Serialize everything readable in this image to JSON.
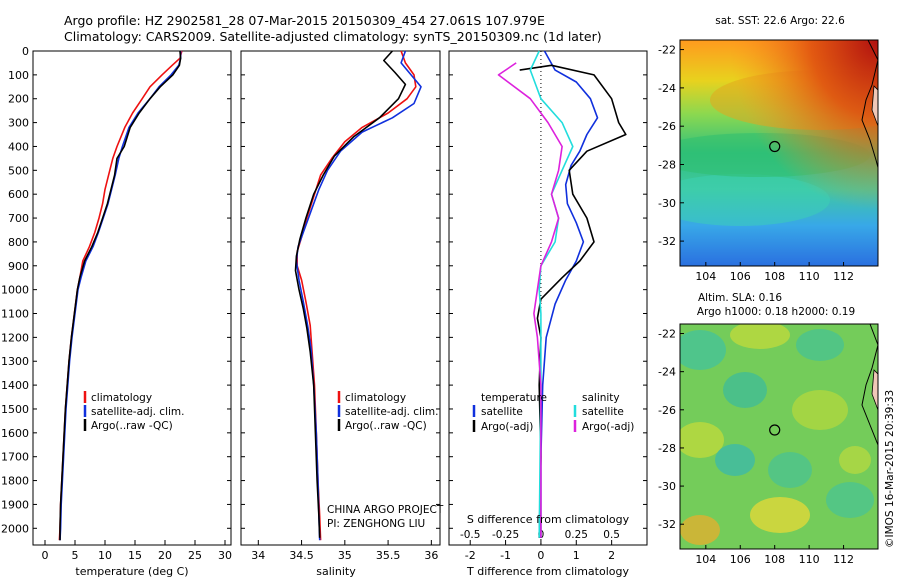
{
  "header": {
    "line1": "Argo profile: HZ 2902581_28 07-Mar-2015 20150309_454 27.061S 107.979E",
    "line2": "Climatology: CARS2009. Satellite-adjusted climatology: synTS_20150309.nc (1d later)"
  },
  "colors": {
    "climatology": "#ee1111",
    "satellite": "#1030dd",
    "argo": "#000000",
    "sal_satellite": "#22dddd",
    "sal_argo": "#dd22dd"
  },
  "depth_axis": {
    "ticks": [
      0,
      100,
      200,
      300,
      400,
      500,
      600,
      700,
      800,
      900,
      1000,
      1100,
      1200,
      1300,
      1400,
      1500,
      1600,
      1700,
      1800,
      1900,
      2000
    ],
    "range": [
      0,
      2070
    ]
  },
  "legend": {
    "climatology": "climatology",
    "satellite": "satellite-adj. clim.",
    "argo": "Argo(..raw -QC)"
  },
  "credit": {
    "project": "CHINA ARGO PROJECT",
    "pi": "PI: ZENGHONG LIU"
  },
  "diff_legend": {
    "temperature": "temperature",
    "salinity": "salinity",
    "t_satellite": "satellite",
    "t_argo": "Argo(-adj)",
    "s_satellite": "satellite",
    "s_argo": "Argo(-adj)"
  },
  "sst_map": {
    "title": "sat. SST: 22.6  Argo: 22.6"
  },
  "sla_map": {
    "title1": "Altim. SLA: 0.16",
    "title2": "Argo h1000: 0.18 h2000: 0.19"
  },
  "map_ticks": {
    "lon": [
      "104",
      "106",
      "108",
      "110",
      "112"
    ],
    "lat": [
      "-22",
      "-24",
      "-26",
      "-28",
      "-30",
      "-32"
    ]
  },
  "watermark": "©IMOS 16-Mar-2015 20:39:33",
  "chart_data": [
    {
      "type": "line",
      "xlabel": "temperature (deg C)",
      "ylabel": "",
      "xlim": [
        -2,
        31
      ],
      "ylim": [
        2070,
        0
      ],
      "xticks": [
        0,
        5,
        10,
        15,
        20,
        25,
        30
      ],
      "series": [
        {
          "name": "climatology",
          "color": "#ee1111",
          "points": [
            [
              22.8,
              0
            ],
            [
              22.5,
              30
            ],
            [
              21.2,
              60
            ],
            [
              19.5,
              100
            ],
            [
              17.5,
              150
            ],
            [
              16.2,
              200
            ],
            [
              14.6,
              260
            ],
            [
              13.3,
              320
            ],
            [
              12.0,
              400
            ],
            [
              11.3,
              450
            ],
            [
              10.6,
              520
            ],
            [
              10.0,
              580
            ],
            [
              9.6,
              640
            ],
            [
              9.0,
              700
            ],
            [
              8.3,
              760
            ],
            [
              7.4,
              820
            ],
            [
              6.3,
              880
            ],
            [
              5.8,
              950
            ],
            [
              5.4,
              1000
            ],
            [
              4.9,
              1100
            ],
            [
              4.4,
              1200
            ],
            [
              4.0,
              1300
            ],
            [
              3.7,
              1400
            ],
            [
              3.4,
              1500
            ],
            [
              3.2,
              1600
            ],
            [
              3.0,
              1700
            ],
            [
              2.8,
              1800
            ],
            [
              2.6,
              1900
            ],
            [
              2.5,
              2000
            ],
            [
              2.4,
              2050
            ]
          ]
        },
        {
          "name": "satellite-adj. clim.",
          "color": "#1030dd",
          "points": [
            [
              22.6,
              0
            ],
            [
              22.6,
              30
            ],
            [
              22.3,
              60
            ],
            [
              21.0,
              100
            ],
            [
              19.0,
              150
            ],
            [
              17.5,
              200
            ],
            [
              15.5,
              260
            ],
            [
              14.0,
              320
            ],
            [
              12.9,
              400
            ],
            [
              12.3,
              450
            ],
            [
              11.7,
              520
            ],
            [
              11.1,
              580
            ],
            [
              10.5,
              640
            ],
            [
              9.7,
              700
            ],
            [
              8.9,
              760
            ],
            [
              8.0,
              820
            ],
            [
              6.8,
              880
            ],
            [
              6.0,
              950
            ],
            [
              5.5,
              1000
            ],
            [
              5.0,
              1100
            ],
            [
              4.5,
              1200
            ],
            [
              4.1,
              1300
            ],
            [
              3.8,
              1400
            ],
            [
              3.5,
              1500
            ],
            [
              3.3,
              1600
            ],
            [
              3.1,
              1700
            ],
            [
              2.9,
              1800
            ],
            [
              2.7,
              1900
            ],
            [
              2.6,
              2000
            ],
            [
              2.5,
              2050
            ]
          ]
        },
        {
          "name": "Argo(..raw -QC)",
          "color": "#000000",
          "points": [
            [
              22.5,
              0
            ],
            [
              22.6,
              30
            ],
            [
              22.4,
              60
            ],
            [
              21.3,
              100
            ],
            [
              19.2,
              150
            ],
            [
              17.5,
              200
            ],
            [
              15.7,
              260
            ],
            [
              14.2,
              320
            ],
            [
              13.2,
              400
            ],
            [
              12.0,
              450
            ],
            [
              11.6,
              520
            ],
            [
              11.0,
              580
            ],
            [
              10.4,
              640
            ],
            [
              9.6,
              700
            ],
            [
              8.8,
              760
            ],
            [
              7.8,
              820
            ],
            [
              6.6,
              880
            ],
            [
              5.8,
              950
            ],
            [
              5.4,
              1000
            ],
            [
              4.9,
              1100
            ],
            [
              4.4,
              1200
            ],
            [
              4.0,
              1300
            ],
            [
              3.7,
              1400
            ],
            [
              3.4,
              1500
            ],
            [
              3.2,
              1600
            ],
            [
              3.0,
              1700
            ],
            [
              2.8,
              1800
            ],
            [
              2.6,
              1900
            ],
            [
              2.5,
              2000
            ],
            [
              2.5,
              2050
            ]
          ]
        }
      ]
    },
    {
      "type": "line",
      "xlabel": "salinity",
      "ylabel": "",
      "xlim": [
        33.8,
        36.1
      ],
      "ylim": [
        2070,
        0
      ],
      "xticks": [
        34,
        34.5,
        35,
        35.5,
        36
      ],
      "series": [
        {
          "name": "climatology",
          "color": "#ee1111",
          "points": [
            [
              35.65,
              0
            ],
            [
              35.7,
              50
            ],
            [
              35.8,
              100
            ],
            [
              35.82,
              150
            ],
            [
              35.72,
              200
            ],
            [
              35.5,
              260
            ],
            [
              35.2,
              320
            ],
            [
              35.0,
              380
            ],
            [
              34.85,
              450
            ],
            [
              34.72,
              520
            ],
            [
              34.65,
              600
            ],
            [
              34.56,
              700
            ],
            [
              34.5,
              780
            ],
            [
              34.45,
              840
            ],
            [
              34.45,
              900
            ],
            [
              34.5,
              960
            ],
            [
              34.55,
              1050
            ],
            [
              34.6,
              1150
            ],
            [
              34.62,
              1250
            ],
            [
              34.65,
              1400
            ],
            [
              34.67,
              1600
            ],
            [
              34.69,
              1800
            ],
            [
              34.71,
              1950
            ],
            [
              34.72,
              2050
            ]
          ]
        },
        {
          "name": "satellite-adj. clim.",
          "color": "#1030dd",
          "points": [
            [
              35.7,
              0
            ],
            [
              35.65,
              50
            ],
            [
              35.72,
              80
            ],
            [
              35.88,
              150
            ],
            [
              35.8,
              220
            ],
            [
              35.55,
              280
            ],
            [
              35.2,
              340
            ],
            [
              34.95,
              420
            ],
            [
              34.8,
              500
            ],
            [
              34.7,
              580
            ],
            [
              34.6,
              680
            ],
            [
              34.52,
              760
            ],
            [
              34.46,
              820
            ],
            [
              34.44,
              880
            ],
            [
              34.47,
              960
            ],
            [
              34.52,
              1050
            ],
            [
              34.57,
              1150
            ],
            [
              34.61,
              1250
            ],
            [
              34.64,
              1400
            ],
            [
              34.67,
              1600
            ],
            [
              34.69,
              1800
            ],
            [
              34.7,
              1950
            ],
            [
              34.71,
              2050
            ]
          ]
        },
        {
          "name": "Argo(..raw -QC)",
          "color": "#000000",
          "points": [
            [
              35.55,
              0
            ],
            [
              35.45,
              40
            ],
            [
              35.58,
              90
            ],
            [
              35.7,
              140
            ],
            [
              35.62,
              200
            ],
            [
              35.4,
              280
            ],
            [
              35.1,
              360
            ],
            [
              34.88,
              440
            ],
            [
              34.75,
              520
            ],
            [
              34.64,
              600
            ],
            [
              34.55,
              700
            ],
            [
              34.48,
              790
            ],
            [
              34.44,
              860
            ],
            [
              34.43,
              920
            ],
            [
              34.47,
              1000
            ],
            [
              34.52,
              1080
            ],
            [
              34.56,
              1160
            ],
            [
              34.6,
              1260
            ],
            [
              34.64,
              1400
            ],
            [
              34.66,
              1600
            ],
            [
              34.68,
              1800
            ],
            [
              34.7,
              1950
            ],
            [
              34.71,
              2040
            ]
          ]
        }
      ]
    },
    {
      "type": "line",
      "xlabel": "T difference from climatology",
      "xlabel_top": "S difference from climatology",
      "ylabel": "",
      "xlim": [
        -2.6,
        3.0
      ],
      "ylim": [
        2070,
        0
      ],
      "xticks": [
        -2,
        -1,
        0,
        1,
        2
      ],
      "s_ticks": [
        "-0.5",
        "-0.25",
        "0",
        "0.25",
        "0.5"
      ],
      "series": [
        {
          "name": "satellite",
          "color": "#1030dd",
          "points": [
            [
              0.1,
              0
            ],
            [
              0.4,
              80
            ],
            [
              1.0,
              130
            ],
            [
              1.4,
              200
            ],
            [
              1.6,
              280
            ],
            [
              1.3,
              350
            ],
            [
              1.1,
              420
            ],
            [
              0.85,
              480
            ],
            [
              0.7,
              560
            ],
            [
              0.75,
              640
            ],
            [
              1.0,
              720
            ],
            [
              1.2,
              800
            ],
            [
              1.0,
              880
            ],
            [
              0.7,
              960
            ],
            [
              0.4,
              1060
            ],
            [
              0.15,
              1200
            ],
            [
              0.05,
              1400
            ],
            [
              0.0,
              1700
            ],
            [
              0.0,
              2040
            ]
          ]
        },
        {
          "name": "Argo(-adj)",
          "color": "#000000",
          "points": [
            [
              -0.6,
              80
            ],
            [
              0.3,
              60
            ],
            [
              1.5,
              100
            ],
            [
              2.0,
              200
            ],
            [
              2.2,
              300
            ],
            [
              2.4,
              350
            ],
            [
              1.3,
              420
            ],
            [
              0.8,
              500
            ],
            [
              0.9,
              600
            ],
            [
              1.3,
              700
            ],
            [
              1.5,
              800
            ],
            [
              1.1,
              880
            ],
            [
              0.6,
              950
            ],
            [
              0.0,
              1040
            ],
            [
              -0.1,
              1120
            ],
            [
              0.0,
              1200
            ],
            [
              -0.05,
              1400
            ],
            [
              0.0,
              1700
            ],
            [
              -0.05,
              2040
            ]
          ]
        },
        {
          "name": "salinity satellite",
          "color": "#22dddd",
          "points": [
            [
              -0.05,
              0
            ],
            [
              -0.3,
              80
            ],
            [
              0.0,
              200
            ],
            [
              0.6,
              300
            ],
            [
              0.9,
              400
            ],
            [
              0.6,
              500
            ],
            [
              0.3,
              600
            ],
            [
              0.5,
              700
            ],
            [
              0.4,
              800
            ],
            [
              0.0,
              900
            ],
            [
              -0.05,
              1000
            ],
            [
              0.0,
              1100
            ],
            [
              0.0,
              1400
            ],
            [
              -0.05,
              2040
            ]
          ]
        },
        {
          "name": "salinity Argo(-adj)",
          "color": "#dd22dd",
          "points": [
            [
              -0.7,
              50
            ],
            [
              -1.2,
              100
            ],
            [
              -0.3,
              200
            ],
            [
              0.2,
              300
            ],
            [
              0.6,
              400
            ],
            [
              0.5,
              500
            ],
            [
              0.3,
              600
            ],
            [
              0.5,
              700
            ],
            [
              0.3,
              800
            ],
            [
              0.0,
              900
            ],
            [
              -0.1,
              1000
            ],
            [
              -0.2,
              1100
            ],
            [
              -0.1,
              1200
            ],
            [
              0.0,
              1400
            ],
            [
              0.0,
              2040
            ]
          ]
        }
      ]
    },
    {
      "type": "heatmap",
      "title": "sat. SST: 22.6  Argo: 22.6",
      "xlim": [
        102.5,
        114
      ],
      "ylim": [
        -33.3,
        -21.5
      ],
      "xticks": [
        104,
        106,
        108,
        110,
        112
      ],
      "yticks": [
        -22,
        -24,
        -26,
        -28,
        -30,
        -32
      ],
      "marker": [
        108.0,
        -27.06
      ]
    },
    {
      "type": "heatmap",
      "title": "Altim. SLA: 0.16  Argo h1000: 0.18 h2000: 0.19",
      "xlim": [
        102.5,
        114
      ],
      "ylim": [
        -33.3,
        -21.5
      ],
      "xticks": [
        104,
        106,
        108,
        110,
        112
      ],
      "yticks": [
        -22,
        -24,
        -26,
        -28,
        -30,
        -32
      ],
      "marker": [
        108.0,
        -27.06
      ]
    }
  ]
}
